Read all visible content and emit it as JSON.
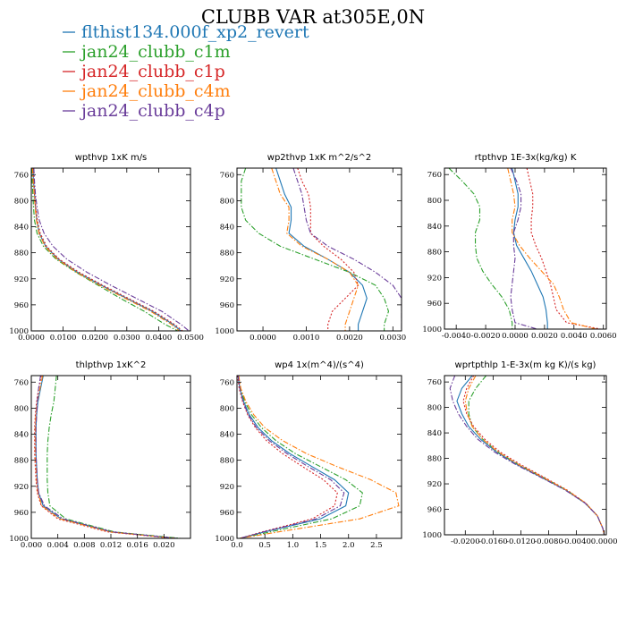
{
  "page": {
    "title": "CLUBB VAR at305E,0N"
  },
  "legend": [
    {
      "label": "flthist134.000f_xp2_revert",
      "color": "#1f77b4"
    },
    {
      "label": "jan24_clubb_c1m",
      "color": "#2ca02c"
    },
    {
      "label": "jan24_clubb_c1p",
      "color": "#d62728"
    },
    {
      "label": "jan24_clubb_c4m",
      "color": "#ff7f0e"
    },
    {
      "label": "jan24_clubb_c4p",
      "color": "#6a3d9a"
    }
  ],
  "chart_data": [
    {
      "type": "line",
      "title": "wpthvp   1xK m/s",
      "xlim": [
        0,
        0.05
      ],
      "ylim": [
        1000,
        750
      ],
      "xticks": [
        0,
        0.01,
        0.02,
        0.03,
        0.04,
        0.05
      ],
      "xtick_labels": [
        "0.0000",
        "0.0100",
        "0.0200",
        "0.0300",
        "0.0400",
        "0.0500"
      ],
      "yticks": [
        760,
        800,
        840,
        880,
        920,
        960,
        1000
      ],
      "y": [
        750,
        770,
        790,
        810,
        830,
        850,
        870,
        890,
        910,
        930,
        950,
        970,
        990,
        1000
      ],
      "series": [
        {
          "name": "flthist134.000f_xp2_revert",
          "values": [
            0.0005,
            0.0007,
            0.001,
            0.0013,
            0.0017,
            0.0025,
            0.0045,
            0.0085,
            0.0145,
            0.022,
            0.03,
            0.038,
            0.0445,
            0.047
          ]
        },
        {
          "name": "jan24_clubb_c1m",
          "values": [
            0.0002,
            0.0003,
            0.0005,
            0.0007,
            0.001,
            0.0018,
            0.0038,
            0.0078,
            0.014,
            0.021,
            0.028,
            0.0355,
            0.042,
            0.046
          ]
        },
        {
          "name": "jan24_clubb_c1p",
          "values": [
            0.0006,
            0.0008,
            0.0011,
            0.0014,
            0.0019,
            0.0028,
            0.0048,
            0.0088,
            0.015,
            0.0225,
            0.0305,
            0.0385,
            0.045,
            0.0475
          ]
        },
        {
          "name": "jan24_clubb_c4m",
          "values": [
            0.0004,
            0.0006,
            0.0009,
            0.0012,
            0.0016,
            0.0024,
            0.0043,
            0.0082,
            0.0142,
            0.0215,
            0.0295,
            0.0375,
            0.044,
            0.0465
          ]
        },
        {
          "name": "jan24_clubb_c4p",
          "values": [
            0.0008,
            0.001,
            0.0013,
            0.0018,
            0.0025,
            0.004,
            0.0068,
            0.0112,
            0.0175,
            0.025,
            0.033,
            0.041,
            0.047,
            0.0495
          ]
        }
      ]
    },
    {
      "type": "line",
      "title": "wp2thvp   1xK m^2/s^2",
      "xlim": [
        -0.0006,
        0.0032
      ],
      "ylim": [
        1000,
        750
      ],
      "xticks": [
        0,
        0.001,
        0.002,
        0.003
      ],
      "xtick_labels": [
        "0.0000",
        "0.0010",
        "0.0020",
        "0.0030"
      ],
      "yticks": [
        760,
        800,
        840,
        880,
        920,
        960,
        1000
      ],
      "y": [
        750,
        770,
        790,
        810,
        830,
        850,
        870,
        890,
        910,
        930,
        950,
        970,
        990,
        1000
      ],
      "series": [
        {
          "name": "flthist134.000f_xp2_revert",
          "values": [
            0.0003,
            0.0004,
            0.0005,
            0.00065,
            0.00065,
            0.0006,
            0.00095,
            0.0015,
            0.002,
            0.0023,
            0.0024,
            0.0023,
            0.0022,
            0.0022
          ]
        },
        {
          "name": "jan24_clubb_c1m",
          "values": [
            -0.0004,
            -0.0005,
            -0.0005,
            -0.0005,
            -0.0004,
            -0.0001,
            0.0004,
            0.0012,
            0.002,
            0.0026,
            0.0028,
            0.0029,
            0.0028,
            0.0028
          ]
        },
        {
          "name": "jan24_clubb_c1p",
          "values": [
            0.0008,
            0.0009,
            0.00105,
            0.0011,
            0.0011,
            0.0011,
            0.0014,
            0.0018,
            0.0021,
            0.0022,
            0.0019,
            0.0016,
            0.0015,
            0.0015
          ]
        },
        {
          "name": "jan24_clubb_c4m",
          "values": [
            0.0002,
            0.0003,
            0.0004,
            0.0006,
            0.0006,
            0.00055,
            0.0009,
            0.0015,
            0.002,
            0.0022,
            0.0021,
            0.002,
            0.0019,
            0.0019
          ]
        },
        {
          "name": "jan24_clubb_c4p",
          "values": [
            0.0007,
            0.0008,
            0.0009,
            0.00095,
            0.001,
            0.0011,
            0.0015,
            0.0021,
            0.0026,
            0.003,
            0.0032,
            0.0032,
            0.0032,
            0.0032
          ]
        }
      ]
    },
    {
      "type": "line",
      "title": "rtpthvp   1E-3x(kg/kg) K",
      "xlim": [
        -0.0048,
        0.0062
      ],
      "ylim": [
        1000,
        750
      ],
      "xticks": [
        -0.004,
        -0.002,
        0,
        0.002,
        0.004,
        0.006
      ],
      "xtick_labels": [
        "-0.0040",
        "-0.0020",
        "0.0000",
        "0.0020",
        "0.0040",
        "0.0060"
      ],
      "yticks": [
        760,
        800,
        840,
        880,
        920,
        960,
        1000
      ],
      "y": [
        750,
        770,
        790,
        810,
        830,
        850,
        870,
        890,
        910,
        930,
        950,
        970,
        990,
        1000
      ],
      "series": [
        {
          "name": "flthist134.000f_xp2_revert",
          "values": [
            -0.0002,
            0,
            0.0002,
            0.0002,
            0.0,
            -0.0001,
            0.0001,
            0.0006,
            0.0011,
            0.0015,
            0.0019,
            0.0021,
            0.0022,
            0.0022
          ]
        },
        {
          "name": "jan24_clubb_c1m",
          "values": [
            -0.0045,
            -0.0036,
            -0.0028,
            -0.0024,
            -0.0024,
            -0.0027,
            -0.0027,
            -0.0026,
            -0.0022,
            -0.0016,
            -0.0009,
            -0.0004,
            -0.0002,
            -0.0002
          ]
        },
        {
          "name": "jan24_clubb_c1p",
          "values": [
            0.0008,
            0.001,
            0.0012,
            0.0012,
            0.0011,
            0.0011,
            0.0014,
            0.0018,
            0.0021,
            0.0024,
            0.0026,
            0.0028,
            0.0035,
            0.0058
          ]
        },
        {
          "name": "jan24_clubb_c4m",
          "values": [
            -0.0005,
            -0.0003,
            -0.0001,
            0.0,
            -0.0002,
            -0.0002,
            0.0003,
            0.001,
            0.0018,
            0.0026,
            0.003,
            0.0033,
            0.0038,
            0.0055
          ]
        },
        {
          "name": "jan24_clubb_c4p",
          "values": [
            -0.0003,
            0.0001,
            0.0004,
            0.0004,
            0.0002,
            -0.0001,
            -0.0001,
            0.0,
            -0.0001,
            -0.0002,
            -0.0003,
            -0.0002,
            0.0,
            0.0015
          ]
        }
      ]
    },
    {
      "type": "line",
      "title": "thlpthvp   1xK^2",
      "xlim": [
        0,
        0.024
      ],
      "ylim": [
        1000,
        750
      ],
      "xticks": [
        0,
        0.004,
        0.008,
        0.012,
        0.016,
        0.02
      ],
      "xtick_labels": [
        "0.000",
        "0.004",
        "0.008",
        "0.012",
        "0.016",
        "0.020"
      ],
      "yticks": [
        760,
        800,
        840,
        880,
        920,
        960,
        1000
      ],
      "y": [
        750,
        770,
        790,
        810,
        830,
        850,
        870,
        890,
        910,
        930,
        950,
        970,
        990,
        1000
      ],
      "series": [
        {
          "name": "flthist134.000f_xp2_revert",
          "values": [
            0.0018,
            0.0014,
            0.001,
            0.0008,
            0.0007,
            0.0007,
            0.0007,
            0.0008,
            0.0009,
            0.0011,
            0.0018,
            0.0045,
            0.012,
            0.022
          ]
        },
        {
          "name": "jan24_clubb_c1m",
          "values": [
            0.0038,
            0.0036,
            0.0034,
            0.003,
            0.0027,
            0.0025,
            0.0024,
            0.0024,
            0.0024,
            0.0025,
            0.0028,
            0.0052,
            0.0125,
            0.0225
          ]
        },
        {
          "name": "jan24_clubb_c1p",
          "values": [
            0.0015,
            0.0011,
            0.0008,
            0.0006,
            0.0005,
            0.0005,
            0.0005,
            0.0006,
            0.0007,
            0.0009,
            0.0015,
            0.004,
            0.0115,
            0.0215
          ]
        },
        {
          "name": "jan24_clubb_c4m",
          "values": [
            0.0017,
            0.0013,
            0.0009,
            0.0007,
            0.0006,
            0.0006,
            0.0006,
            0.0007,
            0.0008,
            0.001,
            0.0016,
            0.0043,
            0.0118,
            0.0218
          ]
        },
        {
          "name": "jan24_clubb_c4p",
          "values": [
            0.0014,
            0.0011,
            0.0009,
            0.0008,
            0.0007,
            0.0007,
            0.0007,
            0.0008,
            0.0009,
            0.0011,
            0.002,
            0.0048,
            0.0122,
            0.022
          ]
        }
      ]
    },
    {
      "type": "line",
      "title": "wp4   1x(m^4)/(s^4)",
      "xlim": [
        0,
        2.95
      ],
      "ylim": [
        1000,
        750
      ],
      "xticks": [
        0,
        0.5,
        1.0,
        1.5,
        2.0,
        2.5
      ],
      "xtick_labels": [
        "0.0",
        "0.5",
        "1.0",
        "1.5",
        "2.0",
        "2.5"
      ],
      "yticks": [
        760,
        800,
        840,
        880,
        920,
        960,
        1000
      ],
      "y": [
        750,
        770,
        790,
        810,
        830,
        850,
        870,
        890,
        910,
        930,
        950,
        970,
        990,
        1000
      ],
      "series": [
        {
          "name": "flthist134.000f_xp2_revert",
          "values": [
            0.02,
            0.05,
            0.12,
            0.22,
            0.38,
            0.62,
            0.95,
            1.35,
            1.75,
            2.0,
            1.95,
            1.5,
            0.5,
            0.05
          ]
        },
        {
          "name": "jan24_clubb_c1m",
          "values": [
            0.03,
            0.06,
            0.14,
            0.26,
            0.44,
            0.7,
            1.05,
            1.5,
            1.95,
            2.25,
            2.2,
            1.7,
            0.6,
            0.05
          ]
        },
        {
          "name": "jan24_clubb_c1p",
          "values": [
            0.01,
            0.04,
            0.1,
            0.19,
            0.33,
            0.53,
            0.82,
            1.18,
            1.55,
            1.8,
            1.75,
            1.35,
            0.45,
            0.05
          ]
        },
        {
          "name": "jan24_clubb_c4m",
          "values": [
            0.03,
            0.07,
            0.16,
            0.3,
            0.5,
            0.82,
            1.25,
            1.8,
            2.4,
            2.85,
            2.9,
            2.2,
            0.75,
            0.05
          ]
        },
        {
          "name": "jan24_clubb_c4p",
          "values": [
            0.02,
            0.05,
            0.11,
            0.2,
            0.35,
            0.58,
            0.9,
            1.28,
            1.68,
            1.92,
            1.85,
            1.42,
            0.48,
            0.05
          ]
        }
      ]
    },
    {
      "type": "line",
      "title": "wprtpthlp   1-E-3x(m kg K)/(s kg)",
      "xlim": [
        -0.023,
        0.0003
      ],
      "ylim": [
        1000,
        750
      ],
      "xticks": [
        -0.02,
        -0.016,
        -0.012,
        -0.008,
        -0.004,
        0
      ],
      "xtick_labels": [
        "-0.0200",
        "-0.0160",
        "-0.0120",
        "-0.0080",
        "-0.0040",
        "0.0000"
      ],
      "yticks": [
        760,
        800,
        840,
        880,
        920,
        960,
        1000
      ],
      "y": [
        750,
        770,
        790,
        810,
        830,
        850,
        870,
        890,
        910,
        930,
        950,
        970,
        990,
        1000
      ],
      "series": [
        {
          "name": "flthist134.000f_xp2_revert",
          "values": [
            -0.019,
            -0.0205,
            -0.0212,
            -0.0205,
            -0.0195,
            -0.0178,
            -0.0155,
            -0.0125,
            -0.009,
            -0.0055,
            -0.0028,
            -0.001,
            -0.0002,
            0
          ]
        },
        {
          "name": "jan24_clubb_c1m",
          "values": [
            -0.017,
            -0.0185,
            -0.0195,
            -0.0195,
            -0.019,
            -0.0175,
            -0.0153,
            -0.0123,
            -0.0088,
            -0.0054,
            -0.0027,
            -0.001,
            -0.0002,
            0
          ]
        },
        {
          "name": "jan24_clubb_c1p",
          "values": [
            -0.0188,
            -0.0198,
            -0.0203,
            -0.0198,
            -0.0188,
            -0.0172,
            -0.015,
            -0.012,
            -0.0086,
            -0.0053,
            -0.0027,
            -0.001,
            -0.0002,
            0
          ]
        },
        {
          "name": "jan24_clubb_c4m",
          "values": [
            -0.0185,
            -0.0195,
            -0.02,
            -0.0197,
            -0.019,
            -0.0175,
            -0.0153,
            -0.0123,
            -0.0088,
            -0.0054,
            -0.0027,
            -0.001,
            -0.0002,
            0
          ]
        },
        {
          "name": "jan24_clubb_c4p",
          "values": [
            -0.0215,
            -0.0222,
            -0.0218,
            -0.021,
            -0.0198,
            -0.0182,
            -0.0158,
            -0.0127,
            -0.0091,
            -0.0056,
            -0.0028,
            -0.001,
            -0.0002,
            0
          ]
        }
      ]
    }
  ]
}
